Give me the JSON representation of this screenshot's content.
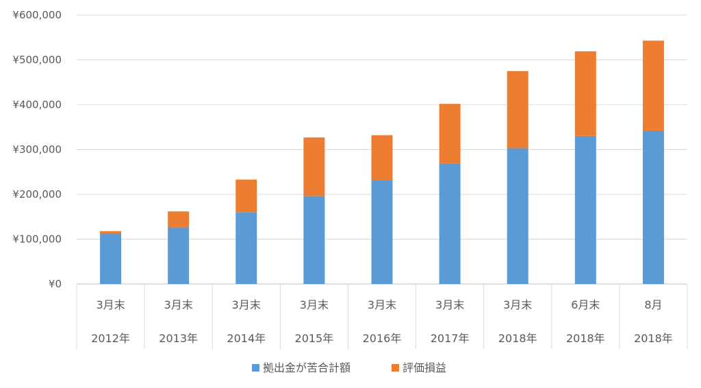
{
  "chart_data": {
    "type": "bar",
    "stacked": true,
    "categories": [
      {
        "top": "3月末",
        "bottom": "2012年"
      },
      {
        "top": "3月末",
        "bottom": "2013年"
      },
      {
        "top": "3月末",
        "bottom": "2014年"
      },
      {
        "top": "3月末",
        "bottom": "2015年"
      },
      {
        "top": "3月末",
        "bottom": "2016年"
      },
      {
        "top": "3月末",
        "bottom": "2017年"
      },
      {
        "top": "3月末",
        "bottom": "2018年"
      },
      {
        "top": "6月末",
        "bottom": "2018年"
      },
      {
        "top": "8月",
        "bottom": "2018年"
      }
    ],
    "series": [
      {
        "name": "拠出金が苦合計額",
        "color": "#5B9BD5",
        "values": [
          113000,
          126000,
          160000,
          196000,
          232000,
          269000,
          303000,
          330000,
          342000
        ]
      },
      {
        "name": "評価損益",
        "color": "#ED7D31",
        "values": [
          5000,
          36000,
          73000,
          131000,
          100000,
          133000,
          172000,
          189000,
          201000
        ]
      }
    ],
    "ylim": [
      0,
      600000
    ],
    "y_ticks": [
      0,
      100000,
      200000,
      300000,
      400000,
      500000,
      600000
    ],
    "y_tick_labels": [
      "¥0",
      "¥100,000",
      "¥200,000",
      "¥300,000",
      "¥400,000",
      "¥500,000",
      "¥600,000"
    ],
    "grid": true,
    "legend_position": "bottom",
    "title": "",
    "xlabel": "",
    "ylabel": ""
  }
}
